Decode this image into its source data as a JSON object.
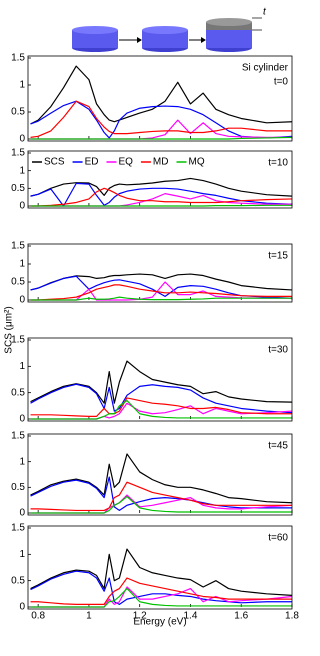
{
  "figure": {
    "xlabel": "Energy (eV)",
    "ylabel": "SCS (μm²)",
    "schematic_label": "t"
  },
  "chart_data": [
    {
      "type": "line",
      "annotations": [
        "Si cylinder",
        "t=0"
      ],
      "xlim": [
        0.76,
        1.8
      ],
      "ylim": [
        0,
        1.5
      ],
      "xticks": [
        0.8,
        1,
        1.2,
        1.4,
        1.6,
        1.8
      ],
      "yticks": [
        0,
        0.5,
        1,
        1.5
      ],
      "show_xtick_labels": false,
      "x": [
        0.77,
        0.8,
        0.85,
        0.9,
        0.95,
        1.0,
        1.03,
        1.06,
        1.08,
        1.1,
        1.12,
        1.15,
        1.2,
        1.25,
        1.3,
        1.35,
        1.4,
        1.45,
        1.5,
        1.55,
        1.6,
        1.7,
        1.8
      ],
      "series": [
        {
          "name": "SCS",
          "color": "#000000",
          "values": [
            0.28,
            0.35,
            0.6,
            0.95,
            1.35,
            1.1,
            0.65,
            0.45,
            0.35,
            0.32,
            0.35,
            0.4,
            0.48,
            0.55,
            0.7,
            1.05,
            0.65,
            0.85,
            0.55,
            0.45,
            0.38,
            0.3,
            0.32
          ]
        },
        {
          "name": "ED",
          "color": "#0000ff",
          "values": [
            0.28,
            0.33,
            0.48,
            0.62,
            0.7,
            0.55,
            0.35,
            0.12,
            0.02,
            0.15,
            0.35,
            0.48,
            0.57,
            0.6,
            0.61,
            0.6,
            0.55,
            0.45,
            0.3,
            0.15,
            0.05,
            0.02,
            0.05
          ]
        },
        {
          "name": "EQ",
          "color": "#ff00ff",
          "values": [
            0,
            0,
            0,
            0,
            0,
            0,
            0,
            0,
            0,
            0,
            0,
            0,
            0,
            0.02,
            0.08,
            0.35,
            0.1,
            0.3,
            0.1,
            0.05,
            0.04,
            0.03,
            0.03
          ]
        },
        {
          "name": "MD",
          "color": "#ff0000",
          "values": [
            0.03,
            0.05,
            0.15,
            0.4,
            0.7,
            0.6,
            0.38,
            0.22,
            0.14,
            0.1,
            0.1,
            0.1,
            0.12,
            0.14,
            0.15,
            0.15,
            0.12,
            0.12,
            0.15,
            0.2,
            0.2,
            0.15,
            0.15
          ]
        },
        {
          "name": "MQ",
          "color": "#00c000",
          "values": [
            0,
            0,
            0,
            0,
            0,
            0,
            0,
            0,
            0,
            0,
            0,
            0,
            0,
            0,
            0,
            0,
            0,
            0,
            0,
            0,
            0.01,
            0.02,
            0.03
          ]
        }
      ]
    },
    {
      "type": "line",
      "annotations": [
        "t=10"
      ],
      "legend": "upper left",
      "xlim": [
        0.76,
        1.8
      ],
      "ylim": [
        0,
        1.5
      ],
      "xticks": [
        0.8,
        1,
        1.2,
        1.4,
        1.6,
        1.8
      ],
      "yticks": [
        0,
        0.5,
        1,
        1.5
      ],
      "show_xtick_labels": false,
      "x": [
        0.77,
        0.8,
        0.85,
        0.9,
        0.95,
        1.0,
        1.03,
        1.06,
        1.08,
        1.1,
        1.12,
        1.15,
        1.2,
        1.25,
        1.3,
        1.35,
        1.4,
        1.45,
        1.5,
        1.55,
        1.6,
        1.7,
        1.8
      ],
      "series": [
        {
          "name": "SCS",
          "color": "#000000",
          "values": [
            0.28,
            0.33,
            0.5,
            0.62,
            0.66,
            0.65,
            0.55,
            0.3,
            0.5,
            0.58,
            0.62,
            0.6,
            0.62,
            0.65,
            0.7,
            0.72,
            0.78,
            0.72,
            0.62,
            0.5,
            0.42,
            0.32,
            0.28
          ]
        },
        {
          "name": "ED",
          "color": "#0000ff",
          "values": [
            0.28,
            0.33,
            0.48,
            0,
            0.64,
            0.62,
            0.3,
            0.02,
            0.1,
            0.25,
            0.35,
            0.42,
            0.48,
            0.5,
            0.5,
            0.48,
            0.42,
            0.35,
            0.3,
            0.22,
            0.15,
            0.08,
            0.05
          ]
        },
        {
          "name": "EQ",
          "color": "#ff00ff",
          "values": [
            0,
            0,
            0,
            0,
            0,
            0,
            0,
            0,
            0,
            0,
            0,
            0.03,
            0.1,
            0.2,
            0.35,
            0.28,
            0.2,
            0.3,
            0.15,
            0.1,
            0.08,
            0.05,
            0.05
          ]
        },
        {
          "name": "MD",
          "color": "#ff0000",
          "values": [
            0,
            0,
            0.02,
            0.05,
            0.1,
            0.2,
            0.4,
            0.5,
            0.45,
            0.38,
            0.3,
            0.22,
            0.15,
            0.15,
            0.12,
            0.12,
            0.1,
            0.1,
            0.1,
            0.12,
            0.15,
            0.18,
            0.2
          ]
        },
        {
          "name": "MQ",
          "color": "#00c000",
          "values": [
            0,
            0,
            0,
            0,
            0,
            0,
            0,
            0,
            0,
            0,
            0,
            0,
            0,
            0,
            0,
            0,
            0,
            0,
            0.01,
            0.01,
            0.01,
            0.02,
            0.02
          ]
        }
      ]
    },
    {
      "type": "line",
      "annotations": [
        "t=15"
      ],
      "xlim": [
        0.76,
        1.8
      ],
      "ylim": [
        0,
        1.5
      ],
      "xticks": [
        0.8,
        1,
        1.2,
        1.4,
        1.6,
        1.8
      ],
      "yticks": [
        0,
        0.5,
        1,
        1.5
      ],
      "show_xtick_labels": false,
      "x": [
        0.77,
        0.8,
        0.85,
        0.9,
        0.95,
        1.0,
        1.03,
        1.06,
        1.08,
        1.1,
        1.12,
        1.15,
        1.2,
        1.25,
        1.3,
        1.35,
        1.4,
        1.45,
        1.5,
        1.55,
        1.6,
        1.7,
        1.8
      ],
      "series": [
        {
          "name": "SCS",
          "color": "#000000",
          "values": [
            0.28,
            0.33,
            0.48,
            0.6,
            0.67,
            0.65,
            0.6,
            0.62,
            0.66,
            0.68,
            0.68,
            0.7,
            0.72,
            0.7,
            0.6,
            0.7,
            0.72,
            0.68,
            0.58,
            0.5,
            0.4,
            0.32,
            0.28
          ]
        },
        {
          "name": "ED",
          "color": "#0000ff",
          "values": [
            0.28,
            0.33,
            0.47,
            0.6,
            0.66,
            0.3,
            0.4,
            0.48,
            0.52,
            0.55,
            0.56,
            0.52,
            0.45,
            0.3,
            0.1,
            0.35,
            0.4,
            0.38,
            0.3,
            0.2,
            0.12,
            0.08,
            0.05
          ]
        },
        {
          "name": "EQ",
          "color": "#ff00ff",
          "values": [
            0,
            0,
            0,
            0,
            0,
            0.3,
            0,
            0,
            0,
            0,
            0,
            0,
            0.02,
            0.08,
            0.5,
            0.15,
            0.15,
            0.25,
            0.1,
            0.08,
            0.06,
            0.05,
            0.05
          ]
        },
        {
          "name": "MD",
          "color": "#ff0000",
          "values": [
            0,
            0,
            0.02,
            0.04,
            0.08,
            0.2,
            0.3,
            0.35,
            0.38,
            0.42,
            0.42,
            0.38,
            0.3,
            0.25,
            0.2,
            0.2,
            0.22,
            0.2,
            0.18,
            0.15,
            0.12,
            0.1,
            0.1
          ]
        },
        {
          "name": "MQ",
          "color": "#00c000",
          "values": [
            0,
            0,
            0,
            0,
            0,
            0.05,
            0.02,
            0.02,
            0.03,
            0.05,
            0.08,
            0.05,
            0.02,
            0.01,
            0.01,
            0.01,
            0.02,
            0.03,
            0.05,
            0.05,
            0.05,
            0.05,
            0.05
          ]
        }
      ]
    },
    {
      "type": "line",
      "annotations": [
        "t=30"
      ],
      "xlim": [
        0.76,
        1.8
      ],
      "ylim": [
        0,
        1.5
      ],
      "xticks": [
        0.8,
        1,
        1.2,
        1.4,
        1.6,
        1.8
      ],
      "yticks": [
        0,
        0.5,
        1,
        1.5
      ],
      "show_xtick_labels": false,
      "x": [
        0.77,
        0.8,
        0.85,
        0.9,
        0.95,
        1.0,
        1.03,
        1.06,
        1.08,
        1.1,
        1.12,
        1.15,
        1.2,
        1.25,
        1.3,
        1.35,
        1.4,
        1.45,
        1.5,
        1.55,
        1.6,
        1.7,
        1.8
      ],
      "series": [
        {
          "name": "SCS",
          "color": "#000000",
          "values": [
            0.33,
            0.4,
            0.52,
            0.62,
            0.67,
            0.62,
            0.5,
            0.3,
            0.9,
            0.3,
            0.7,
            1.1,
            0.9,
            0.75,
            0.7,
            0.65,
            0.62,
            0.48,
            0.52,
            0.42,
            0.38,
            0.33,
            0.32
          ]
        },
        {
          "name": "ED",
          "color": "#0000ff",
          "values": [
            0.3,
            0.38,
            0.5,
            0.6,
            0.66,
            0.6,
            0.48,
            0.2,
            0.6,
            0.15,
            0.2,
            0.45,
            0.62,
            0.65,
            0.62,
            0.6,
            0.55,
            0.4,
            0.3,
            0.25,
            0.2,
            0.15,
            0.12
          ]
        },
        {
          "name": "EQ",
          "color": "#ff00ff",
          "values": [
            0,
            0,
            0,
            0,
            0,
            0,
            0,
            0.05,
            0.02,
            0.05,
            0.1,
            0.3,
            0.15,
            0.1,
            0.12,
            0.18,
            0.25,
            0.1,
            0.2,
            0.15,
            0.1,
            0.12,
            0.15
          ]
        },
        {
          "name": "MD",
          "color": "#ff0000",
          "values": [
            0.08,
            0.08,
            0.08,
            0.07,
            0.06,
            0.05,
            0.05,
            0.2,
            0.1,
            0.1,
            0.15,
            0.4,
            0.35,
            0.3,
            0.28,
            0.25,
            0.2,
            0.2,
            0.22,
            0.18,
            0.12,
            0.1,
            0.1
          ]
        },
        {
          "name": "MQ",
          "color": "#00c000",
          "values": [
            0,
            0,
            0,
            0,
            0,
            0,
            0,
            0.05,
            0.1,
            0.1,
            0.25,
            0.35,
            0.1,
            0.05,
            0.03,
            0.02,
            0.02,
            0.02,
            0.02,
            0.02,
            0.02,
            0.02,
            0.02
          ]
        }
      ]
    },
    {
      "type": "line",
      "annotations": [
        "t=45"
      ],
      "xlim": [
        0.76,
        1.8
      ],
      "ylim": [
        0,
        1.5
      ],
      "xticks": [
        0.8,
        1,
        1.2,
        1.4,
        1.6,
        1.8
      ],
      "yticks": [
        0,
        0.5,
        1,
        1.5
      ],
      "show_xtick_labels": false,
      "x": [
        0.77,
        0.8,
        0.85,
        0.9,
        0.95,
        1.0,
        1.03,
        1.06,
        1.08,
        1.1,
        1.12,
        1.15,
        1.2,
        1.25,
        1.3,
        1.35,
        1.4,
        1.45,
        1.5,
        1.55,
        1.6,
        1.7,
        1.8
      ],
      "series": [
        {
          "name": "SCS",
          "color": "#000000",
          "values": [
            0.35,
            0.42,
            0.55,
            0.62,
            0.66,
            0.6,
            0.5,
            0.35,
            0.95,
            0.5,
            0.6,
            1.15,
            0.8,
            0.65,
            0.55,
            0.5,
            0.5,
            0.45,
            0.38,
            0.3,
            0.28,
            0.22,
            0.2
          ]
        },
        {
          "name": "ED",
          "color": "#0000ff",
          "values": [
            0.33,
            0.4,
            0.52,
            0.6,
            0.64,
            0.58,
            0.48,
            0.3,
            0.7,
            0.12,
            0.05,
            0.15,
            0.22,
            0.28,
            0.3,
            0.28,
            0.25,
            0.2,
            0.15,
            0.12,
            0.1,
            0.1,
            0.1
          ]
        },
        {
          "name": "EQ",
          "color": "#ff00ff",
          "values": [
            0,
            0,
            0,
            0,
            0,
            0,
            0,
            0,
            0.1,
            0.15,
            0.2,
            0.35,
            0.12,
            0.15,
            0.2,
            0.25,
            0.3,
            0.15,
            0.1,
            0.08,
            0.08,
            0.12,
            0.15
          ]
        },
        {
          "name": "MD",
          "color": "#ff0000",
          "values": [
            0.08,
            0.08,
            0.07,
            0.06,
            0.05,
            0.05,
            0.05,
            0.05,
            0.1,
            0.3,
            0.35,
            0.6,
            0.5,
            0.4,
            0.35,
            0.3,
            0.25,
            0.18,
            0.15,
            0.15,
            0.15,
            0.15,
            0.15
          ]
        },
        {
          "name": "MQ",
          "color": "#00c000",
          "values": [
            0,
            0,
            0,
            0,
            0,
            0,
            0,
            0,
            0.05,
            0.15,
            0.2,
            0.32,
            0.1,
            0.05,
            0.03,
            0.02,
            0.02,
            0.02,
            0.02,
            0.02,
            0.02,
            0.02,
            0.02
          ]
        }
      ]
    },
    {
      "type": "line",
      "annotations": [
        "t=60"
      ],
      "xlim": [
        0.76,
        1.8
      ],
      "ylim": [
        0,
        1.5
      ],
      "xticks": [
        0.8,
        1,
        1.2,
        1.4,
        1.6,
        1.8
      ],
      "yticks": [
        0,
        0.5,
        1,
        1.5
      ],
      "show_xtick_labels": true,
      "x": [
        0.77,
        0.8,
        0.85,
        0.9,
        0.95,
        1.0,
        1.03,
        1.06,
        1.08,
        1.1,
        1.12,
        1.15,
        1.2,
        1.25,
        1.3,
        1.35,
        1.4,
        1.45,
        1.5,
        1.55,
        1.6,
        1.7,
        1.8
      ],
      "series": [
        {
          "name": "SCS",
          "color": "#000000",
          "values": [
            0.35,
            0.42,
            0.55,
            0.65,
            0.7,
            0.68,
            0.6,
            0.35,
            1.0,
            0.5,
            0.55,
            1.1,
            0.75,
            0.65,
            0.6,
            0.55,
            0.52,
            0.38,
            0.5,
            0.35,
            0.3,
            0.25,
            0.22
          ]
        },
        {
          "name": "ED",
          "color": "#0000ff",
          "values": [
            0.33,
            0.4,
            0.53,
            0.62,
            0.68,
            0.65,
            0.55,
            0.3,
            0.55,
            0.1,
            0.05,
            0.15,
            0.2,
            0.25,
            0.25,
            0.22,
            0.2,
            0.15,
            0.12,
            0.1,
            0.08,
            0.1,
            0.1
          ]
        },
        {
          "name": "EQ",
          "color": "#ff00ff",
          "values": [
            0,
            0,
            0,
            0,
            0,
            0,
            0,
            0,
            0.15,
            0.05,
            0.1,
            0.38,
            0.15,
            0.15,
            0.2,
            0.25,
            0.35,
            0.1,
            0.2,
            0.1,
            0.12,
            0.15,
            0.2
          ]
        },
        {
          "name": "MD",
          "color": "#ff0000",
          "values": [
            0.1,
            0.1,
            0.08,
            0.06,
            0.05,
            0.05,
            0.05,
            0.05,
            0.2,
            0.3,
            0.35,
            0.55,
            0.45,
            0.4,
            0.35,
            0.3,
            0.25,
            0.2,
            0.18,
            0.15,
            0.15,
            0.15,
            0.15
          ]
        },
        {
          "name": "MQ",
          "color": "#00c000",
          "values": [
            0,
            0,
            0,
            0,
            0,
            0,
            0,
            0,
            0.1,
            0.12,
            0.2,
            0.35,
            0.1,
            0.05,
            0.03,
            0.02,
            0.02,
            0.02,
            0.02,
            0.02,
            0.02,
            0.02,
            0.02
          ]
        }
      ]
    }
  ]
}
